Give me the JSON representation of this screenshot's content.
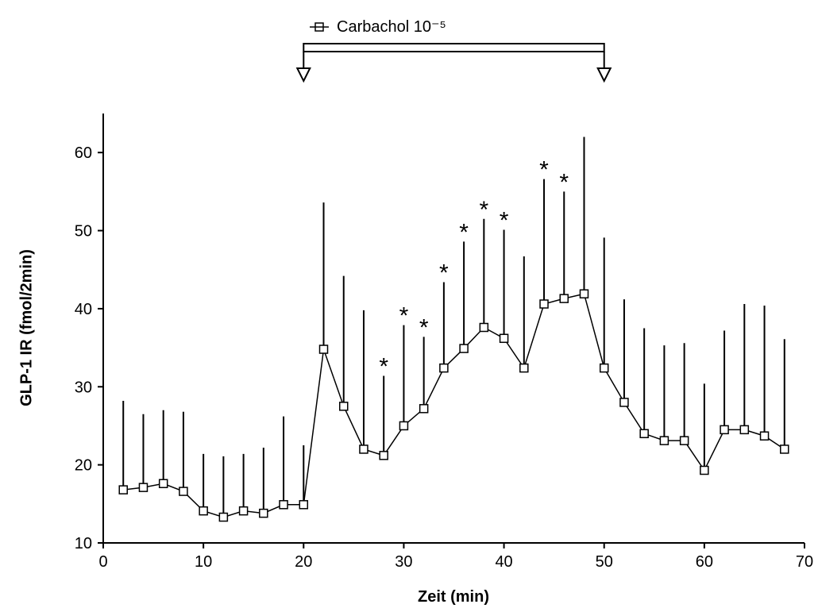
{
  "chart_data": {
    "type": "line",
    "x_label": "Zeit (min)",
    "y_label": "GLP-1 IR (fmol/2min)",
    "xlim": [
      0,
      70
    ],
    "ylim": [
      10,
      65
    ],
    "xticks": [
      0,
      10,
      20,
      30,
      40,
      50,
      60,
      70
    ],
    "yticks": [
      10,
      20,
      30,
      40,
      50,
      60
    ],
    "series": [
      {
        "name": "Carbachol 10⁻⁵",
        "color": "#000000",
        "x": [
          2,
          4,
          6,
          8,
          10,
          12,
          14,
          16,
          18,
          20,
          22,
          24,
          26,
          28,
          30,
          32,
          34,
          36,
          38,
          40,
          42,
          44,
          46,
          48,
          50,
          52,
          54,
          56,
          58,
          60,
          62,
          64,
          66,
          68
        ],
        "values": [
          16.8,
          17.1,
          17.6,
          16.6,
          14.1,
          13.3,
          14.1,
          13.8,
          14.9,
          14.9,
          34.8,
          27.5,
          22.0,
          21.2,
          25.0,
          27.2,
          32.4,
          34.9,
          37.6,
          36.2,
          32.4,
          40.6,
          41.3,
          41.9,
          32.4,
          28.0,
          24.0,
          23.1,
          23.1,
          19.3,
          24.5,
          24.5,
          23.7,
          22.0
        ],
        "errors": [
          11.4,
          9.4,
          9.4,
          10.2,
          7.3,
          7.8,
          7.3,
          8.4,
          11.3,
          7.6,
          18.8,
          16.7,
          17.8,
          10.2,
          12.9,
          9.2,
          11.0,
          13.7,
          13.9,
          13.9,
          14.3,
          16.0,
          13.7,
          20.1,
          16.7,
          13.2,
          13.5,
          12.2,
          12.5,
          11.1,
          12.7,
          16.1,
          16.7,
          14.1
        ]
      }
    ],
    "annotations": [
      {
        "x": 28,
        "text": "*"
      },
      {
        "x": 30,
        "text": "*"
      },
      {
        "x": 32,
        "text": "*"
      },
      {
        "x": 34,
        "text": "*"
      },
      {
        "x": 36,
        "text": "*"
      },
      {
        "x": 38,
        "text": "*"
      },
      {
        "x": 40,
        "text": "*"
      },
      {
        "x": 44,
        "text": "*"
      },
      {
        "x": 46,
        "text": "*"
      }
    ],
    "treatment_interval": [
      20,
      50
    ]
  }
}
